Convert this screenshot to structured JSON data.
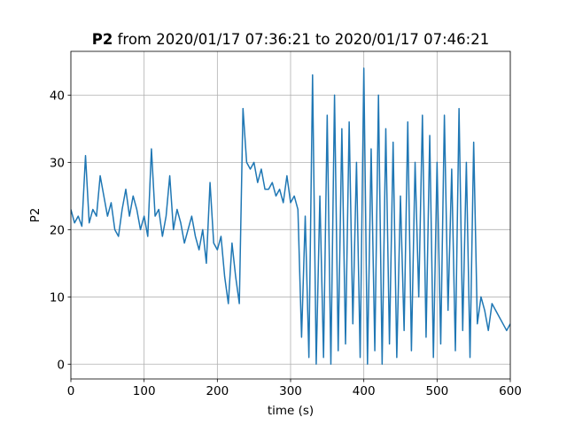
{
  "chart_data": {
    "type": "line",
    "title_parts": [
      "P2",
      "from 2020/01/17 07:36:21 to 2020/01/17 07:46:21"
    ],
    "x_label": "time (s)",
    "y_label": "P2",
    "x": [
      0,
      5,
      10,
      15,
      20,
      25,
      30,
      35,
      40,
      45,
      50,
      55,
      60,
      65,
      70,
      75,
      80,
      85,
      90,
      95,
      100,
      105,
      110,
      115,
      120,
      125,
      130,
      135,
      140,
      145,
      150,
      155,
      160,
      165,
      170,
      175,
      180,
      185,
      190,
      195,
      200,
      205,
      210,
      215,
      220,
      225,
      230,
      235,
      240,
      245,
      250,
      255,
      260,
      265,
      270,
      275,
      280,
      285,
      290,
      295,
      300,
      305,
      310,
      315,
      320,
      325,
      330,
      335,
      340,
      345,
      350,
      355,
      360,
      365,
      370,
      375,
      380,
      385,
      390,
      395,
      400,
      405,
      410,
      415,
      420,
      425,
      430,
      435,
      440,
      445,
      450,
      455,
      460,
      465,
      470,
      475,
      480,
      485,
      490,
      495,
      500,
      505,
      510,
      515,
      520,
      525,
      530,
      535,
      540,
      545,
      550,
      555,
      560,
      565,
      570,
      575,
      580,
      585,
      590,
      595,
      600
    ],
    "series": [
      {
        "name": "P2",
        "color": "#1f77b4",
        "values": [
          23,
          21,
          22,
          20.5,
          31,
          21,
          23,
          22,
          28,
          25,
          22,
          24,
          20,
          19,
          23,
          26,
          22,
          25,
          23,
          20,
          22,
          19,
          32,
          22,
          23,
          19,
          22,
          28,
          20,
          23,
          21,
          18,
          20,
          22,
          19,
          17,
          20,
          15,
          27,
          18,
          17,
          19,
          13,
          9,
          18,
          13,
          9,
          38,
          30,
          29,
          30,
          27,
          29,
          26,
          26,
          27,
          25,
          26,
          24,
          28,
          24,
          25,
          23,
          4,
          22,
          1,
          43,
          0,
          25,
          1,
          37,
          0,
          40,
          2,
          35,
          3,
          36,
          6,
          30,
          1,
          44,
          0,
          32,
          2,
          40,
          0,
          35,
          3,
          33,
          1,
          25,
          5,
          36,
          2,
          30,
          10,
          37,
          4,
          34,
          1,
          30,
          3,
          37,
          8,
          29,
          2,
          38,
          5,
          30,
          1,
          33,
          6,
          10,
          8,
          5,
          9,
          8,
          7,
          6,
          5,
          6
        ]
      }
    ],
    "xlim": [
      0,
      600
    ],
    "xticks": [
      0,
      100,
      200,
      300,
      400,
      500,
      600
    ],
    "ylim": [
      -2.2,
      46.5
    ],
    "yticks": [
      0,
      10,
      20,
      30,
      40
    ],
    "grid": true
  }
}
